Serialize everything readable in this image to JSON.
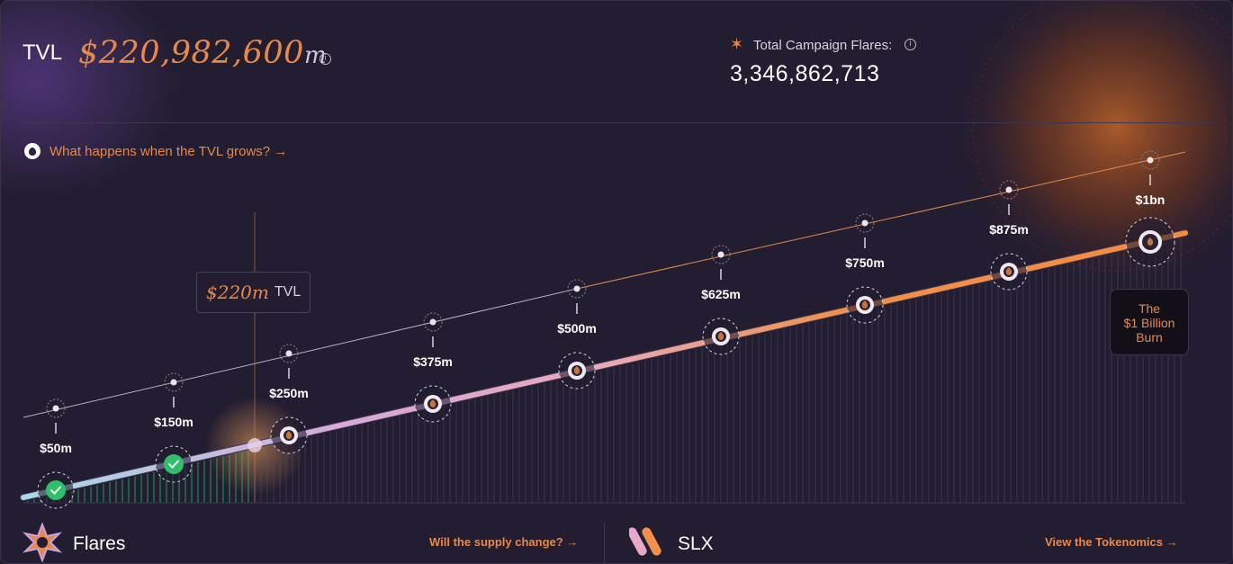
{
  "header": {
    "tvl_label": "TVL",
    "tvl_value": "$220,982,600",
    "tvl_unit": "m",
    "flares_label": "Total Campaign Flares:",
    "flares_value": "3,346,862,713"
  },
  "grow_link": "What happens when the TVL grows? →",
  "current_tvl": {
    "value": "$220m",
    "suffix": "TVL",
    "amount_m": 220
  },
  "milestones": [
    {
      "label": "$50m",
      "amount_m": 50,
      "status": "done"
    },
    {
      "label": "$150m",
      "amount_m": 150,
      "status": "done"
    },
    {
      "label": "$250m",
      "amount_m": 250,
      "status": "locked"
    },
    {
      "label": "$375m",
      "amount_m": 375,
      "status": "locked"
    },
    {
      "label": "$500m",
      "amount_m": 500,
      "status": "locked"
    },
    {
      "label": "$625m",
      "amount_m": 625,
      "status": "locked"
    },
    {
      "label": "$750m",
      "amount_m": 750,
      "status": "locked"
    },
    {
      "label": "$875m",
      "amount_m": 875,
      "status": "locked"
    },
    {
      "label": "$1bn",
      "amount_m": 1000,
      "status": "locked"
    }
  ],
  "burn_box": {
    "line1": "The",
    "line2": "$1 Billion",
    "line3": "Burn"
  },
  "footer": {
    "flares_title": "Flares",
    "supply_link": "Will the supply change? →",
    "slx_title": "SLX",
    "tokenomics_link": "View the Tokenomics →"
  },
  "colors": {
    "accent": "#e8894a",
    "done": "#2fbf6a",
    "bg": "#221d30"
  }
}
